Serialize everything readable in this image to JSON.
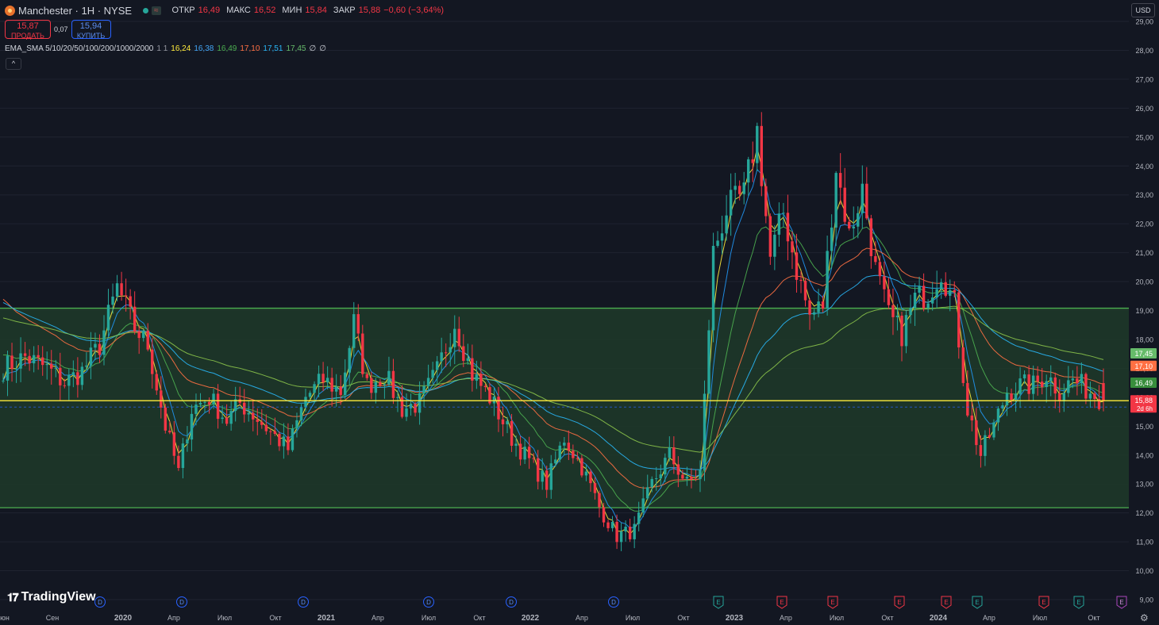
{
  "header": {
    "title": "Manchester · 1H · NYSE",
    "approx_icon": "≈",
    "open_label": "ОТКР",
    "open_value": "16,49",
    "high_label": "МАКС",
    "high_value": "16,52",
    "low_label": "МИН",
    "low_value": "15,84",
    "close_label": "ЗАКР",
    "close_value": "15,88",
    "change": "−0,60 (−3,64%)"
  },
  "trade": {
    "sell_price": "15,87",
    "sell_label": "ПРОДАТЬ",
    "spread": "0,07",
    "buy_price": "15,94",
    "buy_label": "КУПИТЬ"
  },
  "indicator": {
    "name": "EMA_SMA 5/10/20/50/100/200/1000/2000",
    "params": "1 1",
    "values": [
      {
        "text": "16,24",
        "color": "#ffeb3b"
      },
      {
        "text": "16,38",
        "color": "#42a5f5"
      },
      {
        "text": "16,49",
        "color": "#4caf50"
      },
      {
        "text": "17,10",
        "color": "#ff7043"
      },
      {
        "text": "17,51",
        "color": "#29b6f6"
      },
      {
        "text": "17,45",
        "color": "#66bb6a"
      },
      {
        "text": "∅",
        "color": "#d1d4dc"
      },
      {
        "text": "∅",
        "color": "#d1d4dc"
      }
    ]
  },
  "collapse_icon": "chevron-up-icon",
  "currency": "USD",
  "brand": "TradingView",
  "colors": {
    "up": "#26a69a",
    "down": "#f23645",
    "zone_fill": "#1e3a29",
    "zone_line": "#4caf50",
    "yellow_line": "#ffeb3b",
    "ema_fast": "#ffeb3b",
    "ema_10": "#2196f3",
    "ema_20": "#4caf50",
    "ema_50": "#ff7043",
    "ema_100": "#29b6f6",
    "ema_200": "#8bc34a"
  },
  "chart_data": {
    "type": "candlestick",
    "ylim": [
      9.0,
      29.0
    ],
    "y_ticks": [
      "29,00",
      "28,00",
      "27,00",
      "26,00",
      "25,00",
      "24,00",
      "23,00",
      "22,00",
      "21,00",
      "20,00",
      "19,00",
      "18,00",
      "17,00",
      "16,00",
      "15,00",
      "14,00",
      "13,00",
      "12,00",
      "11,00",
      "10,00",
      "9,00"
    ],
    "x_ticks": [
      "юн",
      "Сен",
      "2020",
      "Апр",
      "Июл",
      "Окт",
      "2021",
      "Апр",
      "Июл",
      "Окт",
      "2022",
      "Апр",
      "Июл",
      "Окт",
      "2023",
      "Апр",
      "Июл",
      "Окт",
      "2024",
      "Апр",
      "Июл",
      "Окт"
    ],
    "x_ticks_bold": [
      "2020",
      "2021",
      "2022",
      "2023",
      "2024"
    ],
    "zone": {
      "top": 19.08,
      "bottom": 12.18
    },
    "horizontal_line": 15.88,
    "price_labels": [
      {
        "text": "17,45",
        "value": 17.45,
        "color": "#66bb6a"
      },
      {
        "text": "17,10",
        "value": 17.1,
        "color": "#ff7043"
      },
      {
        "text": "16,49",
        "value": 16.49,
        "color": "#388e3c"
      },
      {
        "text": "15,88",
        "value": 15.88,
        "color": "#f23645",
        "sub": "2d 6h"
      }
    ],
    "event_markers": [
      {
        "letter": "D",
        "type": "dividend",
        "x_label": "2020"
      },
      {
        "letter": "D",
        "type": "dividend",
        "x_label": "Апр"
      },
      {
        "letter": "D",
        "type": "dividend",
        "x_label": "2021"
      },
      {
        "letter": "D",
        "type": "dividend",
        "x_label": "Июл"
      },
      {
        "letter": "D",
        "type": "dividend",
        "x_label": "Окт"
      },
      {
        "letter": "D",
        "type": "dividend",
        "x_label": "Июл"
      },
      {
        "letter": "E",
        "type": "earnings-beat",
        "x_label": "Окт"
      },
      {
        "letter": "E",
        "type": "earnings-miss",
        "x_label": "Апр"
      },
      {
        "letter": "E",
        "type": "earnings-miss",
        "x_label": "Июл"
      },
      {
        "letter": "E",
        "type": "earnings-miss",
        "x_label": "Окт"
      },
      {
        "letter": "E",
        "type": "earnings-miss",
        "x_label": "2024"
      },
      {
        "letter": "E",
        "type": "earnings-beat",
        "x_label": "Апр"
      },
      {
        "letter": "E",
        "type": "earnings-miss",
        "x_label": "Июл"
      },
      {
        "letter": "E",
        "type": "earnings-beat",
        "x_label": "Окт"
      },
      {
        "letter": "E",
        "type": "earnings-upcoming",
        "x_label": "Окт"
      }
    ],
    "trend_anchors": [
      [
        0,
        17.0
      ],
      [
        5,
        17.4
      ],
      [
        10,
        17.0
      ],
      [
        14,
        16.5
      ],
      [
        18,
        16.9
      ],
      [
        22,
        17.8
      ],
      [
        26,
        19.8
      ],
      [
        30,
        18.4
      ],
      [
        33,
        17.8
      ],
      [
        37,
        15.0
      ],
      [
        40,
        13.4
      ],
      [
        43,
        15.6
      ],
      [
        47,
        16.0
      ],
      [
        51,
        15.2
      ],
      [
        54,
        15.8
      ],
      [
        57,
        15.4
      ],
      [
        61,
        14.8
      ],
      [
        65,
        14.2
      ],
      [
        69,
        16.0
      ],
      [
        73,
        16.6
      ],
      [
        77,
        16.2
      ],
      [
        80,
        18.6
      ],
      [
        83,
        16.4
      ],
      [
        87,
        16.8
      ],
      [
        91,
        15.6
      ],
      [
        95,
        15.8
      ],
      [
        99,
        16.9
      ],
      [
        103,
        18.6
      ],
      [
        107,
        16.8
      ],
      [
        111,
        16.0
      ],
      [
        116,
        14.6
      ],
      [
        120,
        13.8
      ],
      [
        124,
        13.0
      ],
      [
        128,
        14.6
      ],
      [
        132,
        13.6
      ],
      [
        136,
        12.2
      ],
      [
        140,
        11.2
      ],
      [
        144,
        11.4
      ],
      [
        148,
        13.0
      ],
      [
        152,
        14.0
      ],
      [
        156,
        13.0
      ],
      [
        159,
        13.4
      ],
      [
        162,
        21.0
      ],
      [
        165,
        22.5
      ],
      [
        169,
        23.0
      ],
      [
        172,
        25.2
      ],
      [
        175,
        20.8
      ],
      [
        178,
        22.4
      ],
      [
        181,
        20.4
      ],
      [
        184,
        18.8
      ],
      [
        187,
        19.2
      ],
      [
        190,
        24.0
      ],
      [
        193,
        21.6
      ],
      [
        196,
        23.2
      ],
      [
        199,
        20.4
      ],
      [
        202,
        18.8
      ],
      [
        205,
        18.2
      ],
      [
        208,
        19.4
      ],
      [
        211,
        19.6
      ],
      [
        214,
        20.4
      ],
      [
        217,
        19.2
      ],
      [
        220,
        15.6
      ],
      [
        223,
        14.0
      ],
      [
        226,
        15.0
      ],
      [
        229,
        16.2
      ],
      [
        232,
        16.4
      ],
      [
        235,
        16.4
      ],
      [
        238,
        16.8
      ],
      [
        241,
        16.2
      ],
      [
        244,
        16.6
      ],
      [
        247,
        16.3
      ],
      [
        251,
        15.88
      ]
    ],
    "n_candles": 252
  }
}
